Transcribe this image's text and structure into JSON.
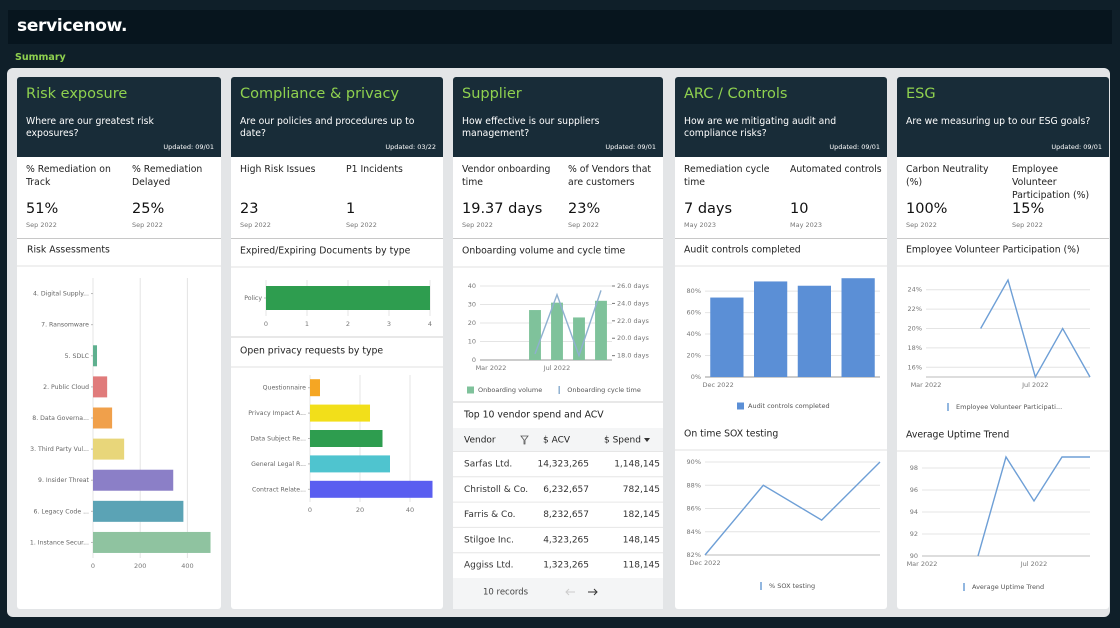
{
  "brand": "servicenow.",
  "tab": "Summary",
  "cards": [
    {
      "title": "Risk exposure",
      "question": "Where are our greatest risk exposures?",
      "updated": "Updated: 09/01",
      "kpis": [
        {
          "label": "% Remediation on Track",
          "value": "51%",
          "date": "Sep 2022"
        },
        {
          "label": "% Remediation Delayed",
          "value": "25%",
          "date": "Sep 2022"
        }
      ]
    },
    {
      "title": "Compliance & privacy",
      "question": "Are our policies and procedures up to date?",
      "updated": "Updated: 03/22",
      "kpis": [
        {
          "label": "High Risk Issues",
          "value": "23",
          "date": "Sep 2022"
        },
        {
          "label": "P1 Incidents",
          "value": "1",
          "date": "Sep 2022"
        }
      ]
    },
    {
      "title": "Supplier",
      "question": "How effective is our suppliers management?",
      "updated": "Updated: 09/01",
      "kpis": [
        {
          "label": "Vendor onboarding time",
          "value": "19.37 days",
          "date": "Sep 2022"
        },
        {
          "label": "% of Vendors that are customers",
          "value": "23%",
          "date": "Sep 2022"
        }
      ]
    },
    {
      "title": "ARC / Controls",
      "question": "How are we mitigating audit and compliance risks?",
      "updated": "Updated: 09/01",
      "kpis": [
        {
          "label": "Remediation cycle time",
          "value": "7 days",
          "date": "May 2023"
        },
        {
          "label": "Automated controls",
          "value": "10",
          "date": "May 2023"
        }
      ]
    },
    {
      "title": "ESG",
      "question": "Are we measuring up to our ESG goals?",
      "updated": "Updated: 09/01",
      "kpis": [
        {
          "label": "Carbon Neutrality (%)",
          "value": "100%",
          "date": "Sep 2022"
        },
        {
          "label": "Employee Volunteer Participation (%)",
          "value": "15%",
          "date": "Sep 2022"
        }
      ]
    }
  ],
  "chart_data": [
    {
      "type": "bar",
      "horizontal": true,
      "title": "Risk Assessments",
      "categories": [
        "4. Digital Supply...",
        "7. Ransomware",
        "5. SDLC",
        "2. Public Cloud",
        "8. Data Governa...",
        "3. Third Party Vul...",
        "9. Insider Threat",
        "6. Legacy Code ...",
        "1. Instance Secur..."
      ],
      "values": [
        0,
        0,
        17,
        60,
        81,
        132,
        340,
        383,
        498
      ],
      "colors": [
        "#6fb89a",
        "#6fb89a",
        "#5fb08f",
        "#e07b7b",
        "#f0a04b",
        "#e8d67a",
        "#8b7fc7",
        "#5ba3b5",
        "#8fc3a0"
      ],
      "xlim": [
        0,
        500
      ],
      "xticks": [
        0,
        200,
        400
      ],
      "grid": true
    },
    {
      "type": "bar",
      "horizontal": true,
      "title": "Expired/Expiring Documents by type",
      "categories": [
        "Policy"
      ],
      "values": [
        4
      ],
      "colors": [
        "#2e9d4f"
      ],
      "xlim": [
        0,
        4
      ],
      "xticks": [
        0,
        1,
        2,
        3,
        4
      ],
      "grid": true
    },
    {
      "type": "bar",
      "horizontal": true,
      "title": "Open privacy requests by type",
      "categories": [
        "Questionnaire",
        "Privacy Impact A...",
        "Data Subject Re...",
        "General Legal R...",
        "Contract Relate..."
      ],
      "values": [
        4,
        24,
        29,
        32,
        49
      ],
      "colors": [
        "#f5a623",
        "#f2df1a",
        "#2e9d4f",
        "#4fc4cf",
        "#5a5ef0"
      ],
      "xlim": [
        0,
        50
      ],
      "xticks": [
        0,
        20,
        40
      ],
      "grid": true
    },
    {
      "type": "combo",
      "title": "Onboarding volume and cycle time",
      "categories": [
        "Mar 2022",
        null,
        null,
        "Jul 2022",
        null,
        null
      ],
      "series": [
        {
          "name": "Onboarding volume",
          "type": "bar",
          "color": "#7fc29b",
          "values": [
            null,
            null,
            27,
            31,
            23,
            32
          ]
        },
        {
          "name": "Onboarding cycle time",
          "type": "line",
          "axis": "y2",
          "color": "#8fb0d0",
          "values": [
            null,
            null,
            18.2,
            25.0,
            18.0,
            25.5
          ]
        }
      ],
      "ylim": [
        0,
        40
      ],
      "yticks": [
        0,
        10,
        20,
        30,
        40
      ],
      "y2lim": [
        17.5,
        26
      ],
      "y2ticks": [
        {
          "value": 18,
          "label": "18.0 days"
        },
        {
          "value": 20,
          "label": "20.0 days"
        },
        {
          "value": 22,
          "label": "22.0 days"
        },
        {
          "value": 24,
          "label": "24.0 days"
        },
        {
          "value": 26,
          "label": "26.0 days"
        }
      ],
      "grid": true
    },
    {
      "type": "bar",
      "title": "Audit controls completed",
      "categories": [
        "Dec 2022",
        null,
        null,
        null
      ],
      "series": [
        {
          "name": "Audit controls completed",
          "color": "#5b8fd6",
          "values": [
            74,
            89,
            85,
            92
          ]
        }
      ],
      "ylim": [
        0,
        95
      ],
      "yticks": [
        {
          "value": 0,
          "label": "0%"
        },
        {
          "value": 20,
          "label": "20%"
        },
        {
          "value": 40,
          "label": "40%"
        },
        {
          "value": 60,
          "label": "60%"
        },
        {
          "value": 80,
          "label": "80%"
        }
      ],
      "grid": true
    },
    {
      "type": "line",
      "title": "On time SOX testing",
      "categories": [
        "Dec 2022",
        null,
        null,
        null
      ],
      "series": [
        {
          "name": "% SOX testing",
          "color": "#6e9fd6",
          "values": [
            82,
            88,
            85,
            90
          ]
        }
      ],
      "ylim": [
        82,
        90
      ],
      "yticks": [
        {
          "value": 82,
          "label": "82%"
        },
        {
          "value": 84,
          "label": "84%"
        },
        {
          "value": 86,
          "label": "86%"
        },
        {
          "value": 88,
          "label": "88%"
        },
        {
          "value": 90,
          "label": "90%"
        }
      ],
      "grid": true
    },
    {
      "type": "line",
      "title": "Employee Volunteer Participation (%)",
      "categories": [
        "Mar 2022",
        null,
        null,
        null,
        "Jul 2022",
        null,
        null
      ],
      "series": [
        {
          "name": "Employee Volunteer Participati...",
          "color": "#6e9fd6",
          "values": [
            null,
            null,
            20,
            25,
            15,
            20,
            15
          ]
        }
      ],
      "ylim": [
        15,
        25
      ],
      "yticks": [
        {
          "value": 16,
          "label": "16%"
        },
        {
          "value": 18,
          "label": "18%"
        },
        {
          "value": 20,
          "label": "20%"
        },
        {
          "value": 22,
          "label": "22%"
        },
        {
          "value": 24,
          "label": "24%"
        }
      ],
      "grid": true
    },
    {
      "type": "line",
      "title": "Average Uptime Trend",
      "categories": [
        "Mar 2022",
        null,
        null,
        null,
        "Jul 2022",
        null,
        null
      ],
      "series": [
        {
          "name": "Average Uptime Trend",
          "color": "#6e9fd6",
          "values": [
            null,
            null,
            90,
            99,
            95,
            99,
            99
          ]
        }
      ],
      "ylim": [
        90,
        100
      ],
      "yticks": [
        90,
        92,
        94,
        96,
        98
      ],
      "grid": true
    }
  ],
  "table": {
    "title": "Top 10 vendor spend and ACV",
    "columns": [
      "Vendor",
      "$ ACV",
      "$ Spend"
    ],
    "rows": [
      [
        "Sarfas Ltd.",
        "14,323,265",
        "1,148,145"
      ],
      [
        "Christoll & Co.",
        "6,232,657",
        "782,145"
      ],
      [
        "Farris & Co.",
        "8,232,657",
        "182,145"
      ],
      [
        "Stilgoe Inc.",
        "4,323,265",
        "148,145"
      ],
      [
        "Aggiss Ltd.",
        "1,323,265",
        "118,145"
      ]
    ],
    "footer": "10 records"
  }
}
